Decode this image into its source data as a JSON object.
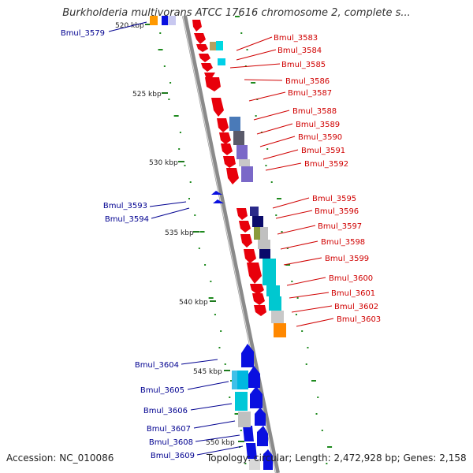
{
  "header": {
    "title": "Burkholderia multivorans ATCC 17616 chromosome 2, complete s..."
  },
  "footer": {
    "accession": "Accession: NC_010086",
    "topology": "Topology: circular; Length: 2,472,928 bp; Genes: 2,158"
  },
  "scale_labels": [
    "520 kbp",
    "525 kbp",
    "530 kbp",
    "535 kbp",
    "540 kbp",
    "545 kbp",
    "550 kbp"
  ],
  "colors": {
    "forward_gene": "#e8000b",
    "reverse_gene": "#0a10e0",
    "backbone": "#8c8c8c",
    "gc_dots": "#1e8a1e",
    "label_red": "#d00000",
    "label_blue": "#000090"
  },
  "right_genes": [
    "Bmul_3583",
    "Bmul_3584",
    "Bmul_3585",
    "Bmul_3586",
    "Bmul_3587",
    "Bmul_3588",
    "Bmul_3589",
    "Bmul_3590",
    "Bmul_3591",
    "Bmul_3592",
    "Bmul_3595",
    "Bmul_3596",
    "Bmul_3597",
    "Bmul_3598",
    "Bmul_3599",
    "Bmul_3600",
    "Bmul_3601",
    "Bmul_3602",
    "Bmul_3603"
  ],
  "left_genes": [
    "Bmul_3579",
    "Bmul_3593",
    "Bmul_3594",
    "Bmul_3604",
    "Bmul_3605",
    "Bmul_3606",
    "Bmul_3607",
    "Bmul_3608",
    "Bmul_3609"
  ]
}
